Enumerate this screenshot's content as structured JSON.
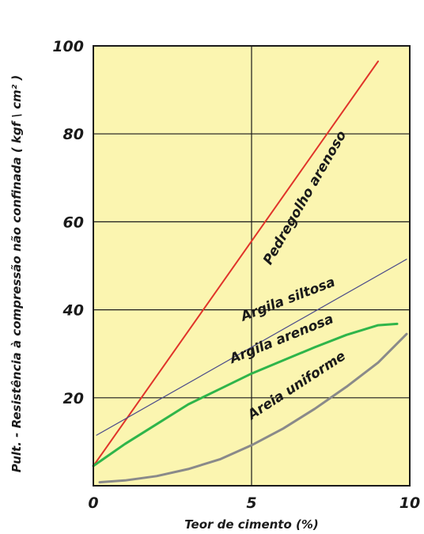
{
  "chart_data": {
    "type": "line",
    "xlabel": "Teor de cimento  (%)",
    "ylabel": "Pult. - Resistência à compressão não confinada ( kgf \\ cm² )",
    "xlim": [
      0,
      10
    ],
    "ylim": [
      0,
      100
    ],
    "x_ticks": [
      "0",
      "5",
      "10"
    ],
    "y_ticks": [
      "20",
      "40",
      "60",
      "80",
      "100"
    ],
    "grid": true,
    "background_color": "#fbf5b0",
    "series": [
      {
        "name": "Pedregolho arenoso",
        "color": "#e0342a",
        "x": [
          0,
          9.0
        ],
        "y": [
          4.5,
          96.5
        ]
      },
      {
        "name": "Argila siltosa",
        "color": "#4a4a8a",
        "x": [
          0.1,
          9.9
        ],
        "y": [
          11.5,
          51.5
        ]
      },
      {
        "name": "Argila arenosa",
        "color": "#2fb54a",
        "x": [
          0,
          1,
          2,
          3,
          4,
          5,
          6,
          7,
          8,
          9,
          9.6
        ],
        "y": [
          4.5,
          9.5,
          14.0,
          18.5,
          22.0,
          25.5,
          28.5,
          31.5,
          34.3,
          36.5,
          36.8
        ]
      },
      {
        "name": "Areia uniforme",
        "color": "#8a8a8a",
        "x": [
          0.2,
          1,
          2,
          3,
          4,
          5,
          6,
          7,
          8,
          9,
          9.9
        ],
        "y": [
          0.8,
          1.2,
          2.2,
          3.8,
          6.0,
          9.2,
          13.0,
          17.5,
          22.5,
          28.0,
          34.5
        ]
      }
    ]
  }
}
